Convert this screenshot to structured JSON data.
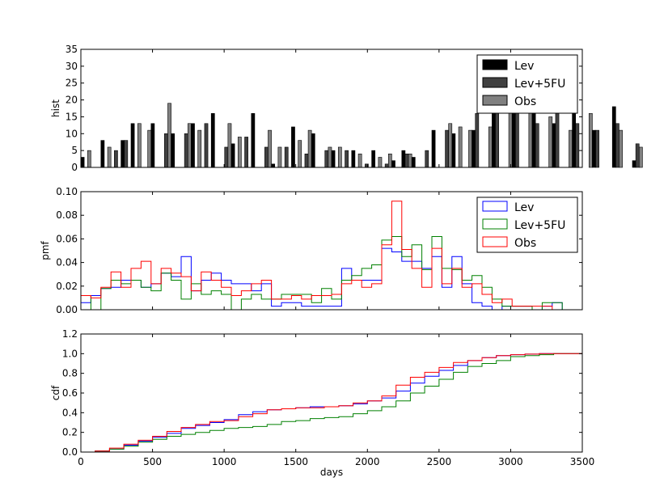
{
  "chart_data": [
    {
      "type": "bar",
      "ylabel": "hist",
      "xlim": [
        0,
        3500
      ],
      "ylim": [
        0,
        35
      ],
      "yticks": [
        0,
        5,
        10,
        15,
        20,
        25,
        30,
        35
      ],
      "bin_width": 70,
      "bin_start": 0,
      "legend": "top-right",
      "series": [
        {
          "name": "Lev",
          "color": "#000000",
          "values": [
            3,
            0,
            8,
            0,
            8,
            13,
            0,
            13,
            0,
            10,
            0,
            13,
            0,
            16,
            0,
            7,
            0,
            16,
            0,
            1,
            0,
            12,
            0,
            10,
            0,
            5,
            0,
            5,
            0,
            5,
            0,
            2,
            5,
            3,
            0,
            11,
            0,
            10,
            0,
            11,
            0,
            27,
            0,
            17,
            0,
            21,
            0,
            13,
            0,
            17,
            0,
            11,
            0,
            18,
            0,
            2,
            0,
            9,
            0,
            4,
            0,
            1,
            0,
            1,
            0,
            1,
            0
          ]
        },
        {
          "name": "Lev+5FU",
          "color": "#404040",
          "values": [
            0,
            0,
            0,
            5,
            8,
            0,
            0,
            0,
            10,
            0,
            10,
            0,
            13,
            0,
            6,
            0,
            9,
            0,
            6,
            0,
            6,
            0,
            4,
            0,
            5,
            0,
            5,
            0,
            1,
            0,
            1,
            0,
            4,
            0,
            5,
            0,
            11,
            0,
            0,
            16,
            0,
            28,
            0,
            18,
            0,
            13,
            0,
            16,
            0,
            13,
            0,
            11,
            0,
            13,
            0,
            7,
            0,
            6,
            0,
            0,
            3,
            0,
            1,
            0,
            1,
            0,
            2
          ]
        },
        {
          "name": "Obs",
          "color": "#808080",
          "values": [
            5,
            0,
            6,
            0,
            0,
            13,
            11,
            0,
            19,
            0,
            13,
            11,
            0,
            0,
            13,
            9,
            0,
            0,
            11,
            6,
            0,
            8,
            11,
            0,
            6,
            6,
            0,
            4,
            0,
            3,
            4,
            0,
            4,
            0,
            0,
            0,
            13,
            12,
            11,
            0,
            12,
            0,
            31,
            0,
            27,
            0,
            15,
            0,
            11,
            0,
            16,
            0,
            0,
            11,
            0,
            6,
            0,
            0,
            7,
            0,
            0,
            3,
            0,
            1,
            0,
            1,
            0
          ]
        }
      ]
    },
    {
      "type": "line",
      "style": "step",
      "ylabel": "pmf",
      "xlim": [
        0,
        3500
      ],
      "ylim": [
        0,
        0.1
      ],
      "yticks": [
        0.0,
        0.02,
        0.04,
        0.06,
        0.08,
        0.1
      ],
      "x_edges": [
        0,
        70,
        140,
        210,
        280,
        350,
        420,
        490,
        560,
        630,
        700,
        770,
        840,
        910,
        980,
        1050,
        1120,
        1190,
        1260,
        1330,
        1400,
        1470,
        1540,
        1610,
        1680,
        1750,
        1820,
        1890,
        1960,
        2030,
        2100,
        2170,
        2240,
        2310,
        2380,
        2450,
        2520,
        2590,
        2660,
        2730,
        2800,
        2870,
        2940,
        3010,
        3080,
        3150,
        3220,
        3290,
        3360
      ],
      "legend": "top-right",
      "series": [
        {
          "name": "Lev",
          "color": "#0000ff",
          "values": [
            0.006,
            0.012,
            0.018,
            0.019,
            0.025,
            0.025,
            0.019,
            0.022,
            0.031,
            0.028,
            0.045,
            0.016,
            0.025,
            0.031,
            0.025,
            0.022,
            0.022,
            0.016,
            0.022,
            0.003,
            0.006,
            0.006,
            0.003,
            0.003,
            0.003,
            0.003,
            0.035,
            0.025,
            0.025,
            0.025,
            0.052,
            0.049,
            0.041,
            0.041,
            0.035,
            0.045,
            0.019,
            0.045,
            0.022,
            0.006,
            0.003,
            0.0,
            0.003,
            0.003,
            0.003,
            0.0,
            0.003,
            0.006
          ]
        },
        {
          "name": "Lev+5FU",
          "color": "#008000",
          "values": [
            0.012,
            0.0,
            0.018,
            0.025,
            0.022,
            0.025,
            0.019,
            0.016,
            0.031,
            0.025,
            0.009,
            0.022,
            0.013,
            0.016,
            0.013,
            0.0,
            0.009,
            0.013,
            0.009,
            0.009,
            0.013,
            0.013,
            0.013,
            0.006,
            0.018,
            0.009,
            0.025,
            0.029,
            0.035,
            0.038,
            0.059,
            0.062,
            0.045,
            0.055,
            0.034,
            0.062,
            0.035,
            0.034,
            0.025,
            0.029,
            0.019,
            0.009,
            0.003,
            0.003,
            0.003,
            0.0,
            0.006,
            0.006
          ]
        },
        {
          "name": "Obs",
          "color": "#ff0000",
          "values": [
            0.012,
            0.01,
            0.019,
            0.032,
            0.019,
            0.035,
            0.041,
            0.022,
            0.035,
            0.031,
            0.028,
            0.016,
            0.032,
            0.025,
            0.019,
            0.012,
            0.016,
            0.022,
            0.025,
            0.009,
            0.009,
            0.012,
            0.009,
            0.012,
            0.012,
            0.013,
            0.022,
            0.025,
            0.019,
            0.022,
            0.055,
            0.092,
            0.051,
            0.035,
            0.019,
            0.052,
            0.022,
            0.035,
            0.019,
            0.022,
            0.013,
            0.006,
            0.009,
            0.003,
            0.003,
            0.003,
            0.003,
            0.0
          ]
        }
      ]
    },
    {
      "type": "line",
      "style": "step",
      "ylabel": "cdf",
      "xlabel": "days",
      "xlim": [
        0,
        3500
      ],
      "ylim": [
        0.0,
        1.2
      ],
      "yticks": [
        0.0,
        0.2,
        0.4,
        0.6,
        0.8,
        1.0,
        1.2
      ],
      "xticks": [
        0,
        500,
        1000,
        1500,
        2000,
        2500,
        3000,
        3500
      ],
      "series": [
        {
          "name": "Lev",
          "color": "#0000ff",
          "x": [
            0,
            100,
            200,
            300,
            400,
            500,
            600,
            700,
            800,
            900,
            1000,
            1100,
            1200,
            1300,
            1400,
            1500,
            1600,
            1700,
            1800,
            1900,
            2000,
            2100,
            2200,
            2300,
            2400,
            2500,
            2600,
            2700,
            2800,
            2900,
            3000,
            3100,
            3200,
            3300,
            3500
          ],
          "y": [
            0.0,
            0.01,
            0.03,
            0.07,
            0.11,
            0.15,
            0.19,
            0.24,
            0.27,
            0.3,
            0.33,
            0.38,
            0.41,
            0.43,
            0.44,
            0.45,
            0.46,
            0.46,
            0.47,
            0.49,
            0.52,
            0.55,
            0.62,
            0.7,
            0.77,
            0.83,
            0.88,
            0.93,
            0.96,
            0.98,
            0.99,
            0.995,
            1.0,
            1.0,
            1.0
          ]
        },
        {
          "name": "Lev+5FU",
          "color": "#008000",
          "x": [
            0,
            100,
            200,
            300,
            400,
            500,
            600,
            700,
            800,
            900,
            1000,
            1100,
            1200,
            1300,
            1400,
            1500,
            1600,
            1700,
            1800,
            1900,
            2000,
            2100,
            2200,
            2300,
            2400,
            2500,
            2600,
            2700,
            2800,
            2900,
            3000,
            3100,
            3200,
            3300,
            3500
          ],
          "y": [
            0.0,
            0.01,
            0.03,
            0.06,
            0.1,
            0.13,
            0.16,
            0.18,
            0.2,
            0.22,
            0.24,
            0.25,
            0.26,
            0.28,
            0.31,
            0.32,
            0.34,
            0.35,
            0.36,
            0.39,
            0.42,
            0.46,
            0.52,
            0.6,
            0.67,
            0.74,
            0.81,
            0.87,
            0.9,
            0.93,
            0.97,
            0.98,
            0.99,
            1.0,
            1.0
          ]
        },
        {
          "name": "Obs",
          "color": "#ff0000",
          "x": [
            0,
            100,
            200,
            300,
            400,
            500,
            600,
            700,
            800,
            900,
            1000,
            1100,
            1200,
            1300,
            1400,
            1500,
            1600,
            1700,
            1800,
            1900,
            2000,
            2100,
            2200,
            2300,
            2400,
            2500,
            2600,
            2700,
            2800,
            2900,
            3000,
            3100,
            3200,
            3300,
            3500
          ],
          "y": [
            0.0,
            0.01,
            0.04,
            0.08,
            0.12,
            0.16,
            0.21,
            0.25,
            0.28,
            0.31,
            0.32,
            0.36,
            0.39,
            0.43,
            0.44,
            0.45,
            0.45,
            0.46,
            0.47,
            0.5,
            0.52,
            0.57,
            0.68,
            0.76,
            0.81,
            0.86,
            0.91,
            0.93,
            0.96,
            0.98,
            0.99,
            0.995,
            1.0,
            1.0,
            1.0
          ]
        }
      ]
    }
  ]
}
